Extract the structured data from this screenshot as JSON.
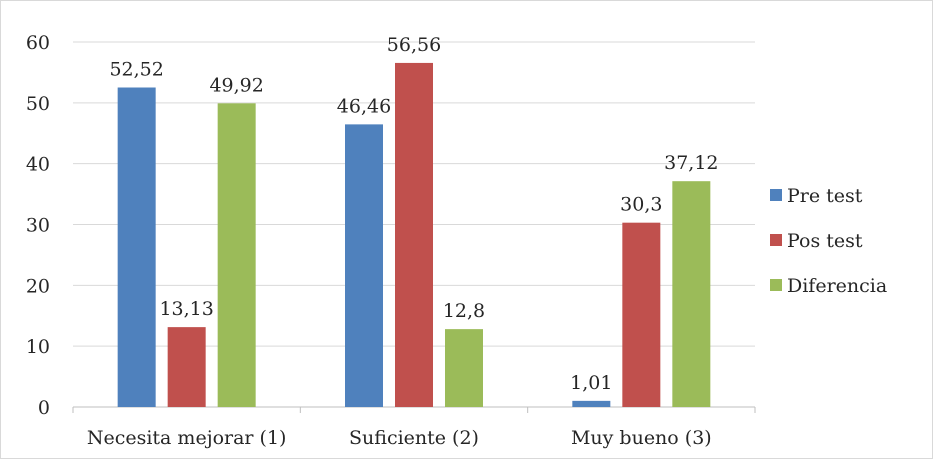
{
  "chart_data": {
    "type": "bar",
    "categories": [
      "Necesita mejorar (1)",
      "Suficiente (2)",
      "Muy bueno (3)"
    ],
    "series": [
      {
        "name": "Pre test",
        "color": "#4f81bd",
        "values": [
          52.52,
          46.46,
          1.01
        ],
        "labels": [
          "52,52",
          "46,46",
          "1,01"
        ]
      },
      {
        "name": "Pos test",
        "color": "#c0504d",
        "values": [
          13.13,
          56.56,
          30.3
        ],
        "labels": [
          "13,13",
          "56,56",
          "30,3"
        ]
      },
      {
        "name": "Diferencia",
        "color": "#9bbb59",
        "values": [
          49.92,
          12.8,
          37.12
        ],
        "labels": [
          "49,92",
          "12,8",
          "37,12"
        ]
      }
    ],
    "ylim": [
      0,
      60
    ],
    "yticks": [
      0,
      10,
      20,
      30,
      40,
      50,
      60
    ],
    "grid": true,
    "legend": "right",
    "title": "",
    "xlabel": "",
    "ylabel": ""
  }
}
